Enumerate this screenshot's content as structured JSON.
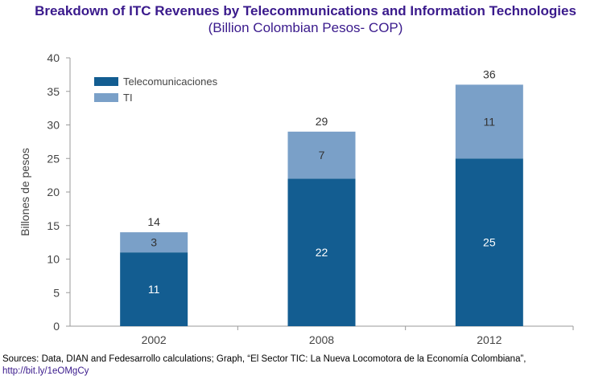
{
  "title": "Breakdown of ITC Revenues by Telecommunications and Information Technologies",
  "subtitle": "(Billion Colombian Pesos- COP)",
  "footer": {
    "sources": "Sources: Data, DIAN and Fedesarrollo calculations; Graph, “El Sector TIC: La Nueva Locomotora de la Economía Colombiana”,",
    "link": "http://bit.ly/1eOMgCy"
  },
  "chart_data": {
    "type": "bar",
    "stacked": true,
    "categories": [
      "2002",
      "2008",
      "2012"
    ],
    "series": [
      {
        "name": "Telecomunicaciones",
        "values": [
          11,
          22,
          25
        ],
        "color": "#135d91",
        "label_color": "#ffffff"
      },
      {
        "name": "TI",
        "values": [
          3,
          7,
          11
        ],
        "color": "#7aa0c8",
        "label_color": "#333333"
      }
    ],
    "totals": [
      14,
      29,
      36
    ],
    "ylabel": "Billones de pesos",
    "ylim": [
      0,
      40
    ],
    "yticks": [
      0,
      5,
      10,
      15,
      20,
      25,
      30,
      35,
      40
    ],
    "grid": false,
    "legend": "top-left"
  }
}
